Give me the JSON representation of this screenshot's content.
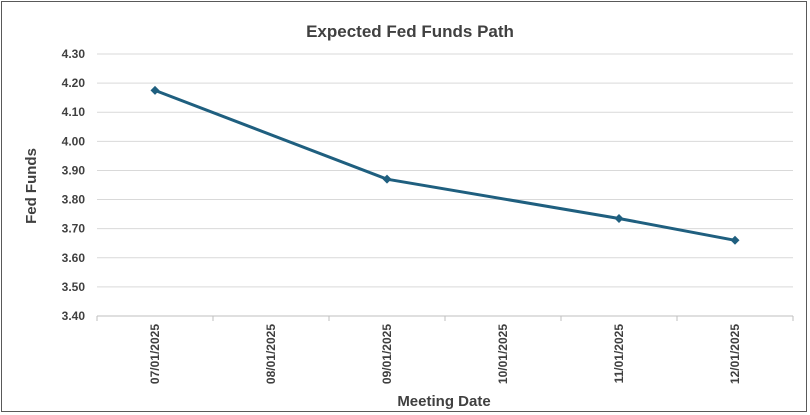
{
  "chart_data": {
    "type": "line",
    "title": "Expected Fed Funds Path",
    "xlabel": "Meeting Date",
    "ylabel": "Fed Funds",
    "categories": [
      "07/01/2025",
      "08/01/2025",
      "09/01/2025",
      "10/01/2025",
      "11/01/2025",
      "12/01/2025"
    ],
    "series": [
      {
        "points": [
          {
            "x": "07/01/2025",
            "y": 4.175
          },
          {
            "x": "09/01/2025",
            "y": 3.87
          },
          {
            "x": "11/01/2025",
            "y": 3.735
          },
          {
            "x": "12/01/2025",
            "y": 3.66
          }
        ]
      }
    ],
    "ylim": [
      3.4,
      4.3
    ],
    "yticks": [
      "3.40",
      "3.50",
      "3.60",
      "3.70",
      "3.80",
      "3.90",
      "4.00",
      "4.10",
      "4.20",
      "4.30"
    ],
    "grid": true,
    "legend": "none",
    "colors": {
      "line": "#1F5F7F",
      "marker": "#1F5F7F",
      "grid": "#D9D9D9",
      "text": "#404040"
    }
  }
}
